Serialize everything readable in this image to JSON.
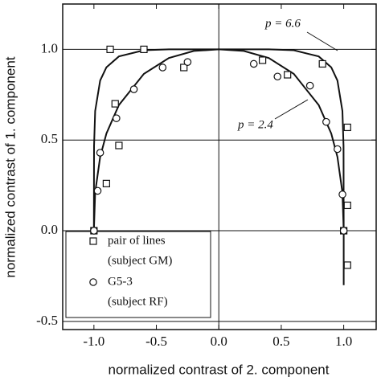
{
  "chart_data": {
    "type": "scatter",
    "xlabel": "normalized contrast of 2. component",
    "ylabel": "normalized contrast of 1. component",
    "xlim": [
      -1.25,
      1.26
    ],
    "ylim": [
      -0.545,
      1.25
    ],
    "xticks": [
      {
        "value": -1,
        "label": "-1.0"
      },
      {
        "value": -0.5,
        "label": "-0.5"
      },
      {
        "value": 0,
        "label": "0.0"
      },
      {
        "value": 0.5,
        "label": "0.5"
      },
      {
        "value": 1,
        "label": "1.0"
      }
    ],
    "yticks": [
      {
        "value": -0.5,
        "label": "-0.5"
      },
      {
        "value": 0,
        "label": "0.0"
      },
      {
        "value": 0.5,
        "label": "0.5"
      },
      {
        "value": 1,
        "label": "1.0"
      }
    ],
    "grid": true,
    "color": "#111111",
    "series": [
      {
        "name": "pair of lines",
        "subject": "(subject GM)",
        "marker": "square",
        "x": [
          -0.87,
          -0.6,
          -0.28,
          0.35,
          0.55,
          0.83,
          -0.83,
          -0.8,
          -0.9,
          -1.0,
          1.0,
          1.03,
          1.03,
          1.03
        ],
        "y": [
          1.0,
          1.0,
          0.9,
          0.94,
          0.86,
          0.92,
          0.7,
          0.47,
          0.26,
          0.0,
          0.0,
          0.57,
          0.14,
          -0.19
        ]
      },
      {
        "name": "G5-3",
        "subject": "(subject RF)",
        "marker": "circle",
        "x": [
          -1.0,
          -0.97,
          -0.95,
          -0.82,
          -0.68,
          -0.45,
          -0.25,
          0.28,
          0.47,
          0.73,
          0.86,
          0.95,
          0.99,
          1.0
        ],
        "y": [
          0.0,
          0.22,
          0.43,
          0.62,
          0.78,
          0.9,
          0.93,
          0.92,
          0.85,
          0.8,
          0.6,
          0.45,
          0.2,
          0.0
        ]
      }
    ],
    "curves": [
      {
        "label": "p = 6.6",
        "x": [
          -1,
          -0.999,
          -0.99,
          -0.95,
          -0.9,
          -0.8,
          -0.6,
          -0.4,
          0,
          0.4,
          0.6,
          0.8,
          0.9,
          0.95,
          0.99,
          0.999,
          1,
          1
        ],
        "y": [
          0,
          0.467,
          0.66,
          0.828,
          0.901,
          0.961,
          0.995,
          1,
          1,
          1,
          0.995,
          0.961,
          0.901,
          0.828,
          0.66,
          0.467,
          0,
          -0.3
        ]
      },
      {
        "label": "p = 2.4",
        "x": [
          -1,
          -0.99,
          -0.95,
          -0.9,
          -0.8,
          -0.6,
          -0.4,
          -0.2,
          0,
          0.2,
          0.4,
          0.6,
          0.8,
          0.9,
          0.95,
          0.99,
          1
        ],
        "y": [
          0,
          0.211,
          0.407,
          0.536,
          0.693,
          0.865,
          0.952,
          0.991,
          1,
          0.991,
          0.952,
          0.865,
          0.693,
          0.536,
          0.407,
          0.211,
          0
        ]
      }
    ]
  }
}
